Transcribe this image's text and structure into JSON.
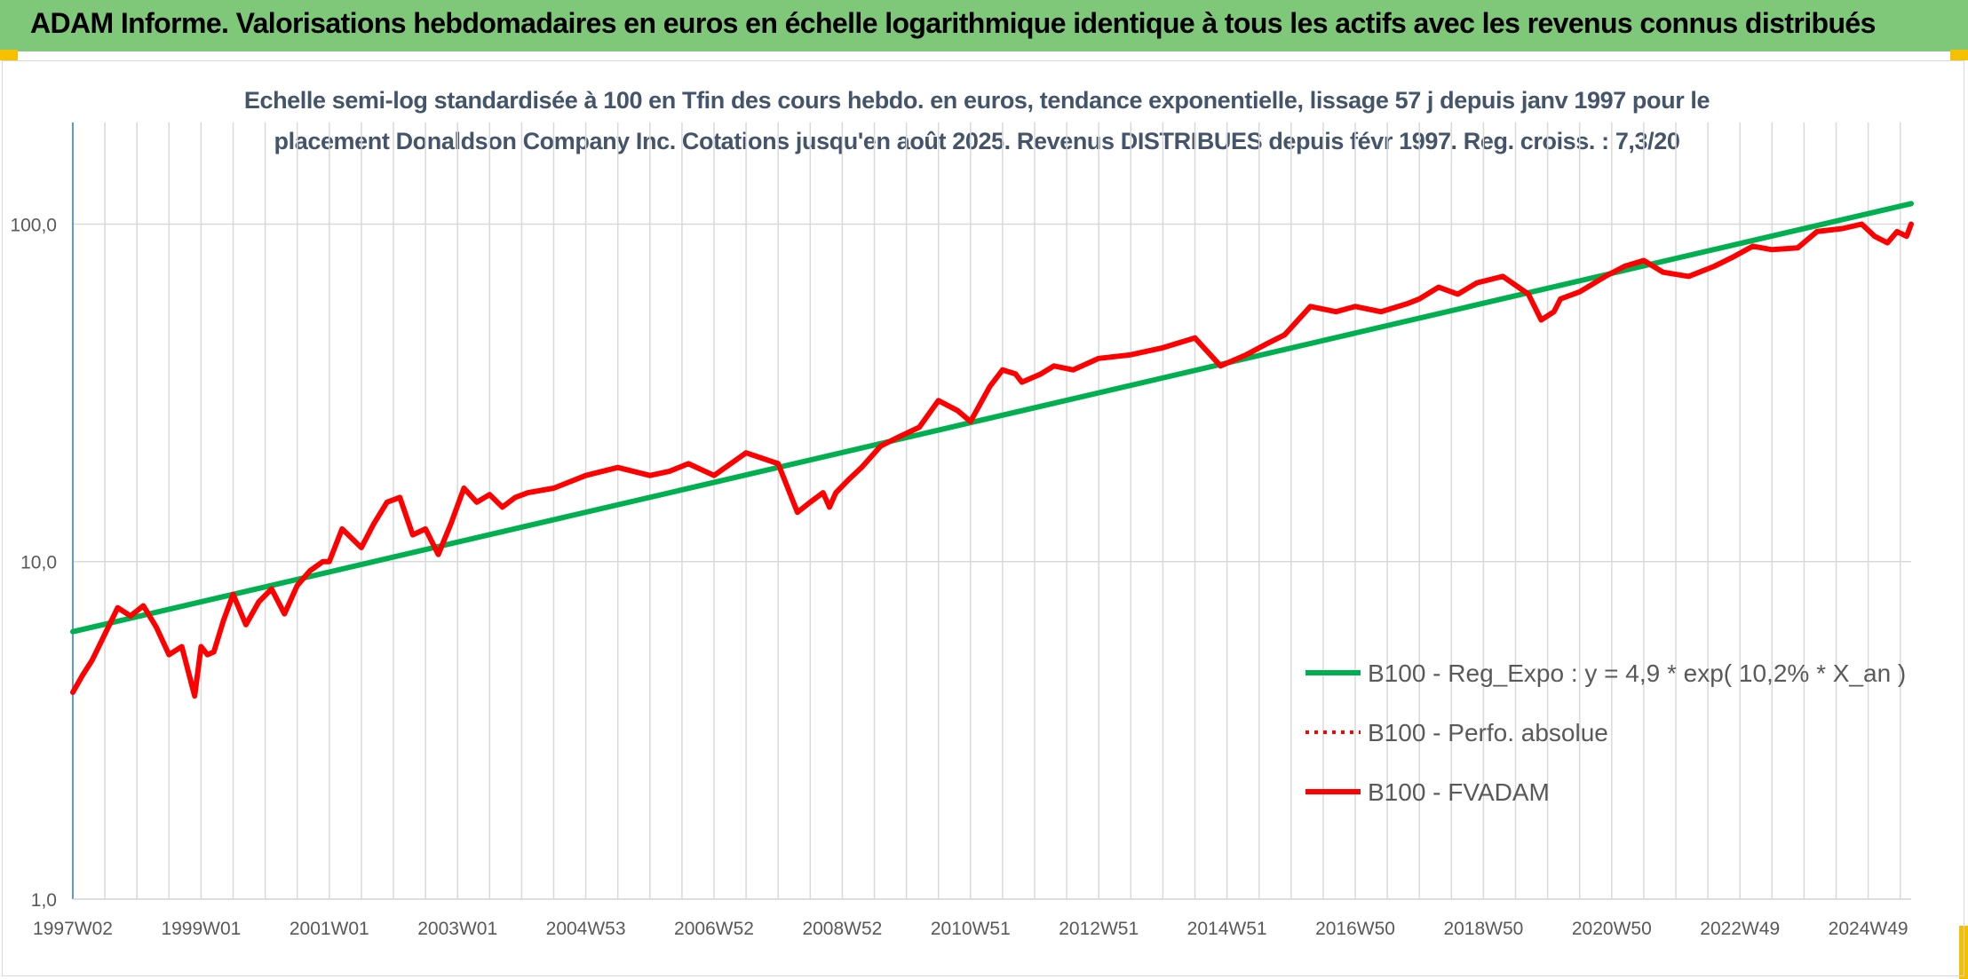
{
  "header": {
    "title": "ADAM Informe. Valorisations hebdomadaires en euros en échelle logarithmique identique à tous les actifs avec les revenus connus distribués"
  },
  "chart_data": {
    "type": "line",
    "title_line1": "Echelle semi-log standardisée à 100 en Tfin des cours hebdo. en euros, tendance exponentielle, lissage 57 j depuis janv 1997 pour le",
    "title_line2": "placement Donaldson Company Inc. Cotations jusqu'en août 2025. Revenus DISTRIBUES depuis févr 1997. Reg. croiss. : 7,3/20",
    "y_scale": "log",
    "ylim": [
      1,
      200
    ],
    "xlim": [
      1997.0,
      2025.67
    ],
    "y_ticks": [
      {
        "value": 1,
        "label": "1,0"
      },
      {
        "value": 10,
        "label": "10,0"
      },
      {
        "value": 100,
        "label": "100,0"
      }
    ],
    "x_ticks": [
      {
        "value": 1997.0,
        "label": "1997W02"
      },
      {
        "value": 1999.0,
        "label": "1999W01"
      },
      {
        "value": 2001.0,
        "label": "2001W01"
      },
      {
        "value": 2003.0,
        "label": "2003W01"
      },
      {
        "value": 2005.0,
        "label": "2004W53"
      },
      {
        "value": 2007.0,
        "label": "2006W52"
      },
      {
        "value": 2009.0,
        "label": "2008W52"
      },
      {
        "value": 2011.0,
        "label": "2010W51"
      },
      {
        "value": 2013.0,
        "label": "2012W51"
      },
      {
        "value": 2015.0,
        "label": "2014W51"
      },
      {
        "value": 2017.0,
        "label": "2016W50"
      },
      {
        "value": 2019.0,
        "label": "2018W50"
      },
      {
        "value": 2021.0,
        "label": "2020W50"
      },
      {
        "value": 2023.0,
        "label": "2022W49"
      },
      {
        "value": 2025.0,
        "label": "2024W49"
      }
    ],
    "grid": true,
    "legend_position": "bottom-right",
    "series": [
      {
        "name": "B100 - Reg_Expo : y = 4,9 * exp( 10,2% *  X_an )",
        "color": "#00b050",
        "style": "solid",
        "x": [
          1997.0,
          2025.67
        ],
        "y": [
          6.2,
          115
        ]
      },
      {
        "name": "B100 - Perfo. absolue",
        "color": "#ff0000",
        "style": "dotted",
        "x": [],
        "y": []
      },
      {
        "name": "B100 - FVADAM",
        "color": "#ff0000",
        "style": "solid",
        "x": [
          1997.0,
          1997.15,
          1997.3,
          1997.5,
          1997.7,
          1997.9,
          1998.1,
          1998.3,
          1998.5,
          1998.7,
          1998.9,
          1999.0,
          1999.1,
          1999.2,
          1999.35,
          1999.5,
          1999.7,
          1999.9,
          2000.1,
          2000.3,
          2000.5,
          2000.7,
          2000.9,
          2001.0,
          2001.2,
          2001.5,
          2001.7,
          2001.9,
          2002.1,
          2002.3,
          2002.5,
          2002.7,
          2002.9,
          2003.1,
          2003.3,
          2003.5,
          2003.7,
          2003.9,
          2004.1,
          2004.5,
          2005.0,
          2005.5,
          2006.0,
          2006.3,
          2006.6,
          2007.0,
          2007.5,
          2008.0,
          2008.3,
          2008.5,
          2008.7,
          2008.8,
          2008.9,
          2009.1,
          2009.3,
          2009.6,
          2009.9,
          2010.2,
          2010.5,
          2010.8,
          2011.0,
          2011.3,
          2011.5,
          2011.7,
          2011.8,
          2012.1,
          2012.3,
          2012.6,
          2013.0,
          2013.5,
          2014.0,
          2014.5,
          2014.9,
          2015.3,
          2015.6,
          2015.9,
          2016.3,
          2016.7,
          2017.0,
          2017.4,
          2017.8,
          2018.0,
          2018.3,
          2018.6,
          2018.9,
          2019.3,
          2019.7,
          2019.9,
          2020.1,
          2020.2,
          2020.5,
          2020.9,
          2021.2,
          2021.5,
          2021.8,
          2022.2,
          2022.6,
          2022.9,
          2023.2,
          2023.5,
          2023.9,
          2024.2,
          2024.6,
          2024.9,
          2025.1,
          2025.3,
          2025.45,
          2025.6,
          2025.67
        ],
        "y": [
          4.1,
          4.6,
          5.1,
          6.1,
          7.3,
          6.9,
          7.4,
          6.4,
          5.3,
          5.6,
          4.0,
          5.6,
          5.3,
          5.4,
          6.7,
          8.0,
          6.5,
          7.6,
          8.3,
          7.0,
          8.5,
          9.4,
          10.0,
          10.0,
          12.5,
          11.0,
          13.0,
          15.0,
          15.5,
          12.0,
          12.5,
          10.5,
          13.0,
          16.5,
          15.0,
          15.8,
          14.5,
          15.5,
          16.0,
          16.5,
          18.0,
          19.0,
          18.0,
          18.5,
          19.5,
          18.0,
          21.0,
          19.5,
          14.0,
          15.0,
          16.0,
          14.5,
          16.0,
          17.5,
          19.0,
          22.0,
          23.5,
          25.0,
          30.0,
          28.0,
          26.0,
          33.0,
          37.0,
          36.0,
          34.0,
          36.0,
          38.0,
          37.0,
          40.0,
          41.0,
          43.0,
          46.0,
          38.0,
          41.0,
          44.0,
          47.0,
          57.0,
          55.0,
          57.0,
          55.0,
          58.0,
          60.0,
          65.0,
          62.0,
          67.0,
          70.0,
          62.0,
          52.0,
          55.0,
          60.0,
          63.0,
          70.0,
          75.0,
          78.0,
          72.0,
          70.0,
          75.0,
          80.0,
          86.0,
          84.0,
          85.0,
          95.0,
          97.0,
          100.0,
          92.0,
          88.0,
          95.0,
          92.0,
          100.0
        ]
      }
    ]
  }
}
